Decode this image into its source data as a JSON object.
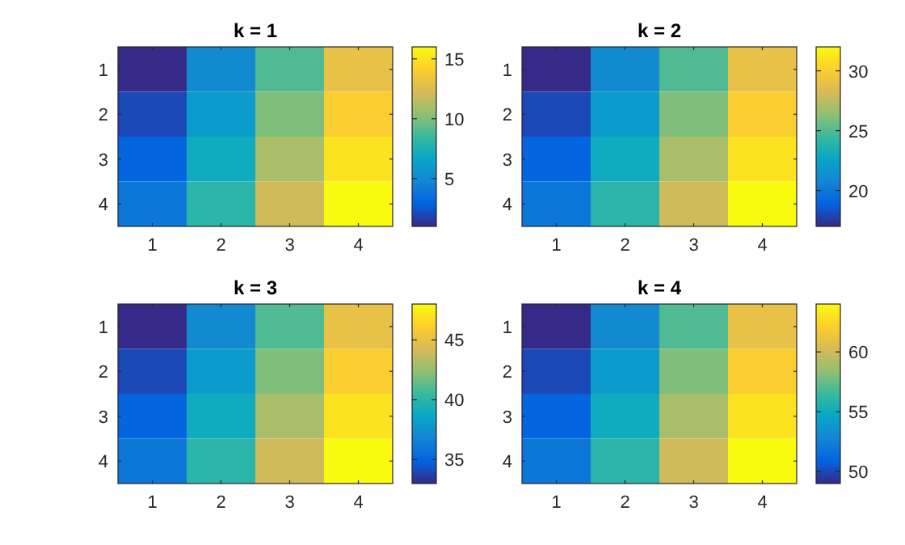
{
  "chart_data": [
    {
      "type": "heatmap",
      "title": "k = 1",
      "categories": [
        "1",
        "2",
        "3",
        "4"
      ],
      "y_categories": [
        "1",
        "2",
        "3",
        "4"
      ],
      "cells": [
        [
          1,
          5,
          9,
          13
        ],
        [
          2,
          6,
          10,
          14
        ],
        [
          3,
          7,
          11,
          15
        ],
        [
          4,
          8,
          12,
          16
        ]
      ],
      "clim": [
        1,
        16
      ],
      "cticks": [
        5,
        10,
        15
      ]
    },
    {
      "type": "heatmap",
      "title": "k = 2",
      "categories": [
        "1",
        "2",
        "3",
        "4"
      ],
      "y_categories": [
        "1",
        "2",
        "3",
        "4"
      ],
      "cells": [
        [
          17,
          21,
          25,
          29
        ],
        [
          18,
          22,
          26,
          30
        ],
        [
          19,
          23,
          27,
          31
        ],
        [
          20,
          24,
          28,
          32
        ]
      ],
      "clim": [
        17,
        32
      ],
      "cticks": [
        20,
        25,
        30
      ]
    },
    {
      "type": "heatmap",
      "title": "k = 3",
      "categories": [
        "1",
        "2",
        "3",
        "4"
      ],
      "y_categories": [
        "1",
        "2",
        "3",
        "4"
      ],
      "cells": [
        [
          33,
          37,
          41,
          45
        ],
        [
          34,
          38,
          42,
          46
        ],
        [
          35,
          39,
          43,
          47
        ],
        [
          36,
          40,
          44,
          48
        ]
      ],
      "clim": [
        33,
        48
      ],
      "cticks": [
        35,
        40,
        45
      ]
    },
    {
      "type": "heatmap",
      "title": "k = 4",
      "categories": [
        "1",
        "2",
        "3",
        "4"
      ],
      "y_categories": [
        "1",
        "2",
        "3",
        "4"
      ],
      "cells": [
        [
          49,
          53,
          57,
          61
        ],
        [
          50,
          54,
          58,
          62
        ],
        [
          51,
          55,
          59,
          63
        ],
        [
          52,
          56,
          60,
          64
        ]
      ],
      "clim": [
        49,
        64
      ],
      "cticks": [
        50,
        55,
        60
      ]
    }
  ]
}
